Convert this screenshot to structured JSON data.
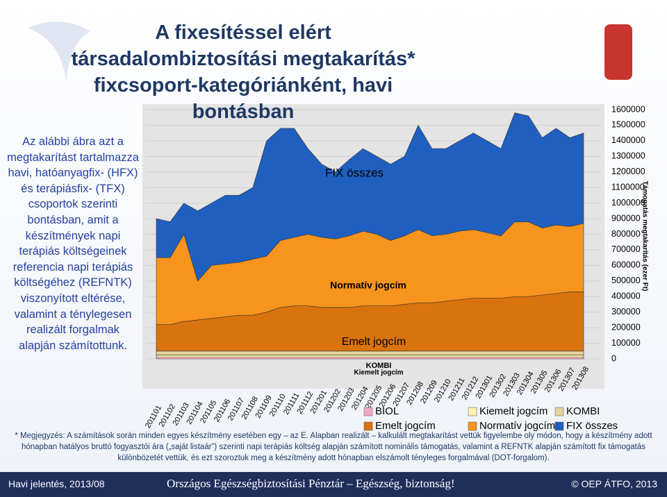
{
  "slide": {
    "title": "A fixesítéssel elért társadalombiztosítási megtakarítás* fixcsoport-kategóriánként, havi bontásban",
    "description": "Az alábbi ábra azt a megtakarítást tartalmazza havi, hatóanyagfix- (HFX) és terápiásfix- (TFX) csoportok szerinti bontásban, amit a készítmények napi terápiás költségeinek referencia napi terápiás költségéhez (REFNTK) viszonyított eltérése, valamint a ténylegesen realizált forgalmak alapján számítottunk.",
    "footnote": "* Megjegyzés: A számítások során minden egyes készítmény esetében egy – az E. Alapban realizált – kalkulált megtakarítást vettük figyelembe oly módon, hogy a készítmény adott hónapban hatályos bruttó fogyasztói ára („saját listaár”) szerinti napi terápiás költség alapján számított nominális támogatás, valamint a REFNTK alapján számított fix támogatás különbözetét vettük, és ezt szoroztuk meg a készítmény adott hónapban elszámolt tényleges forgalmával (DOT-forgalom).",
    "footer_left": "Havi jelentés, 2013/08",
    "footer_center": "Országos Egészségbiztosítási Pénztár – Egészség, biztonság!",
    "footer_right": "© OEP ÁTFO, 2013"
  },
  "chart_data": {
    "type": "stacked-area",
    "y_label": "Támogatás megtakarítás (ezer Ft)",
    "categories": [
      "201101",
      "201102",
      "201103",
      "201104",
      "201105",
      "201106",
      "201107",
      "201108",
      "201109",
      "201110",
      "201111",
      "201112",
      "201201",
      "201202",
      "201203",
      "201204",
      "201205",
      "201206",
      "201207",
      "201208",
      "201209",
      "201210",
      "201211",
      "201212",
      "201301",
      "201302",
      "201303",
      "201304",
      "201305",
      "201306",
      "201307",
      "201308"
    ],
    "ylim": [
      0,
      1600000
    ],
    "yticks": [
      0,
      100000,
      200000,
      300000,
      400000,
      500000,
      600000,
      700000,
      800000,
      900000,
      1000000,
      1100000,
      1200000,
      1300000,
      1400000,
      1500000,
      1600000
    ],
    "series": [
      {
        "name": "BIOL",
        "color": "#f4a6c4",
        "values": [
          10000,
          10000,
          10000,
          10000,
          10000,
          10000,
          10000,
          10000,
          10000,
          10000,
          10000,
          10000,
          10000,
          10000,
          10000,
          10000,
          10000,
          10000,
          10000,
          10000,
          10000,
          10000,
          10000,
          10000,
          10000,
          10000,
          10000,
          10000,
          10000,
          10000,
          10000,
          10000
        ]
      },
      {
        "name": "Kiemelt jogcím",
        "color": "#fff4b0",
        "values": [
          15000,
          15000,
          15000,
          15000,
          15000,
          15000,
          15000,
          15000,
          15000,
          15000,
          15000,
          15000,
          15000,
          15000,
          15000,
          15000,
          15000,
          15000,
          15000,
          15000,
          15000,
          15000,
          15000,
          15000,
          15000,
          15000,
          15000,
          15000,
          15000,
          15000,
          15000,
          15000
        ]
      },
      {
        "name": "KOMBI",
        "color": "#e3d39c",
        "values": [
          25000,
          25000,
          25000,
          25000,
          25000,
          25000,
          25000,
          25000,
          25000,
          25000,
          25000,
          25000,
          25000,
          25000,
          25000,
          25000,
          25000,
          25000,
          25000,
          25000,
          25000,
          25000,
          25000,
          25000,
          25000,
          25000,
          25000,
          25000,
          25000,
          25000,
          25000,
          25000
        ]
      },
      {
        "name": "Emelt jogcím",
        "color": "#d9730d",
        "values": [
          170000,
          170000,
          190000,
          200000,
          210000,
          220000,
          230000,
          230000,
          250000,
          280000,
          290000,
          290000,
          280000,
          280000,
          280000,
          290000,
          290000,
          290000,
          300000,
          310000,
          310000,
          320000,
          330000,
          340000,
          340000,
          340000,
          350000,
          350000,
          360000,
          370000,
          380000,
          380000
        ]
      },
      {
        "name": "Normatív jogcím",
        "color": "#f7941d",
        "values": [
          430000,
          430000,
          560000,
          250000,
          340000,
          340000,
          340000,
          360000,
          360000,
          430000,
          440000,
          460000,
          450000,
          440000,
          460000,
          480000,
          460000,
          420000,
          440000,
          470000,
          430000,
          430000,
          440000,
          440000,
          420000,
          400000,
          480000,
          480000,
          430000,
          440000,
          420000,
          440000
        ]
      },
      {
        "name": "FIX összes",
        "color": "#1f5fbf",
        "values": [
          250000,
          230000,
          200000,
          450000,
          400000,
          440000,
          430000,
          460000,
          740000,
          720000,
          700000,
          550000,
          470000,
          430000,
          490000,
          530000,
          500000,
          490000,
          510000,
          670000,
          560000,
          550000,
          580000,
          620000,
          590000,
          560000,
          700000,
          680000,
          580000,
          620000,
          570000,
          580000
        ]
      }
    ]
  }
}
